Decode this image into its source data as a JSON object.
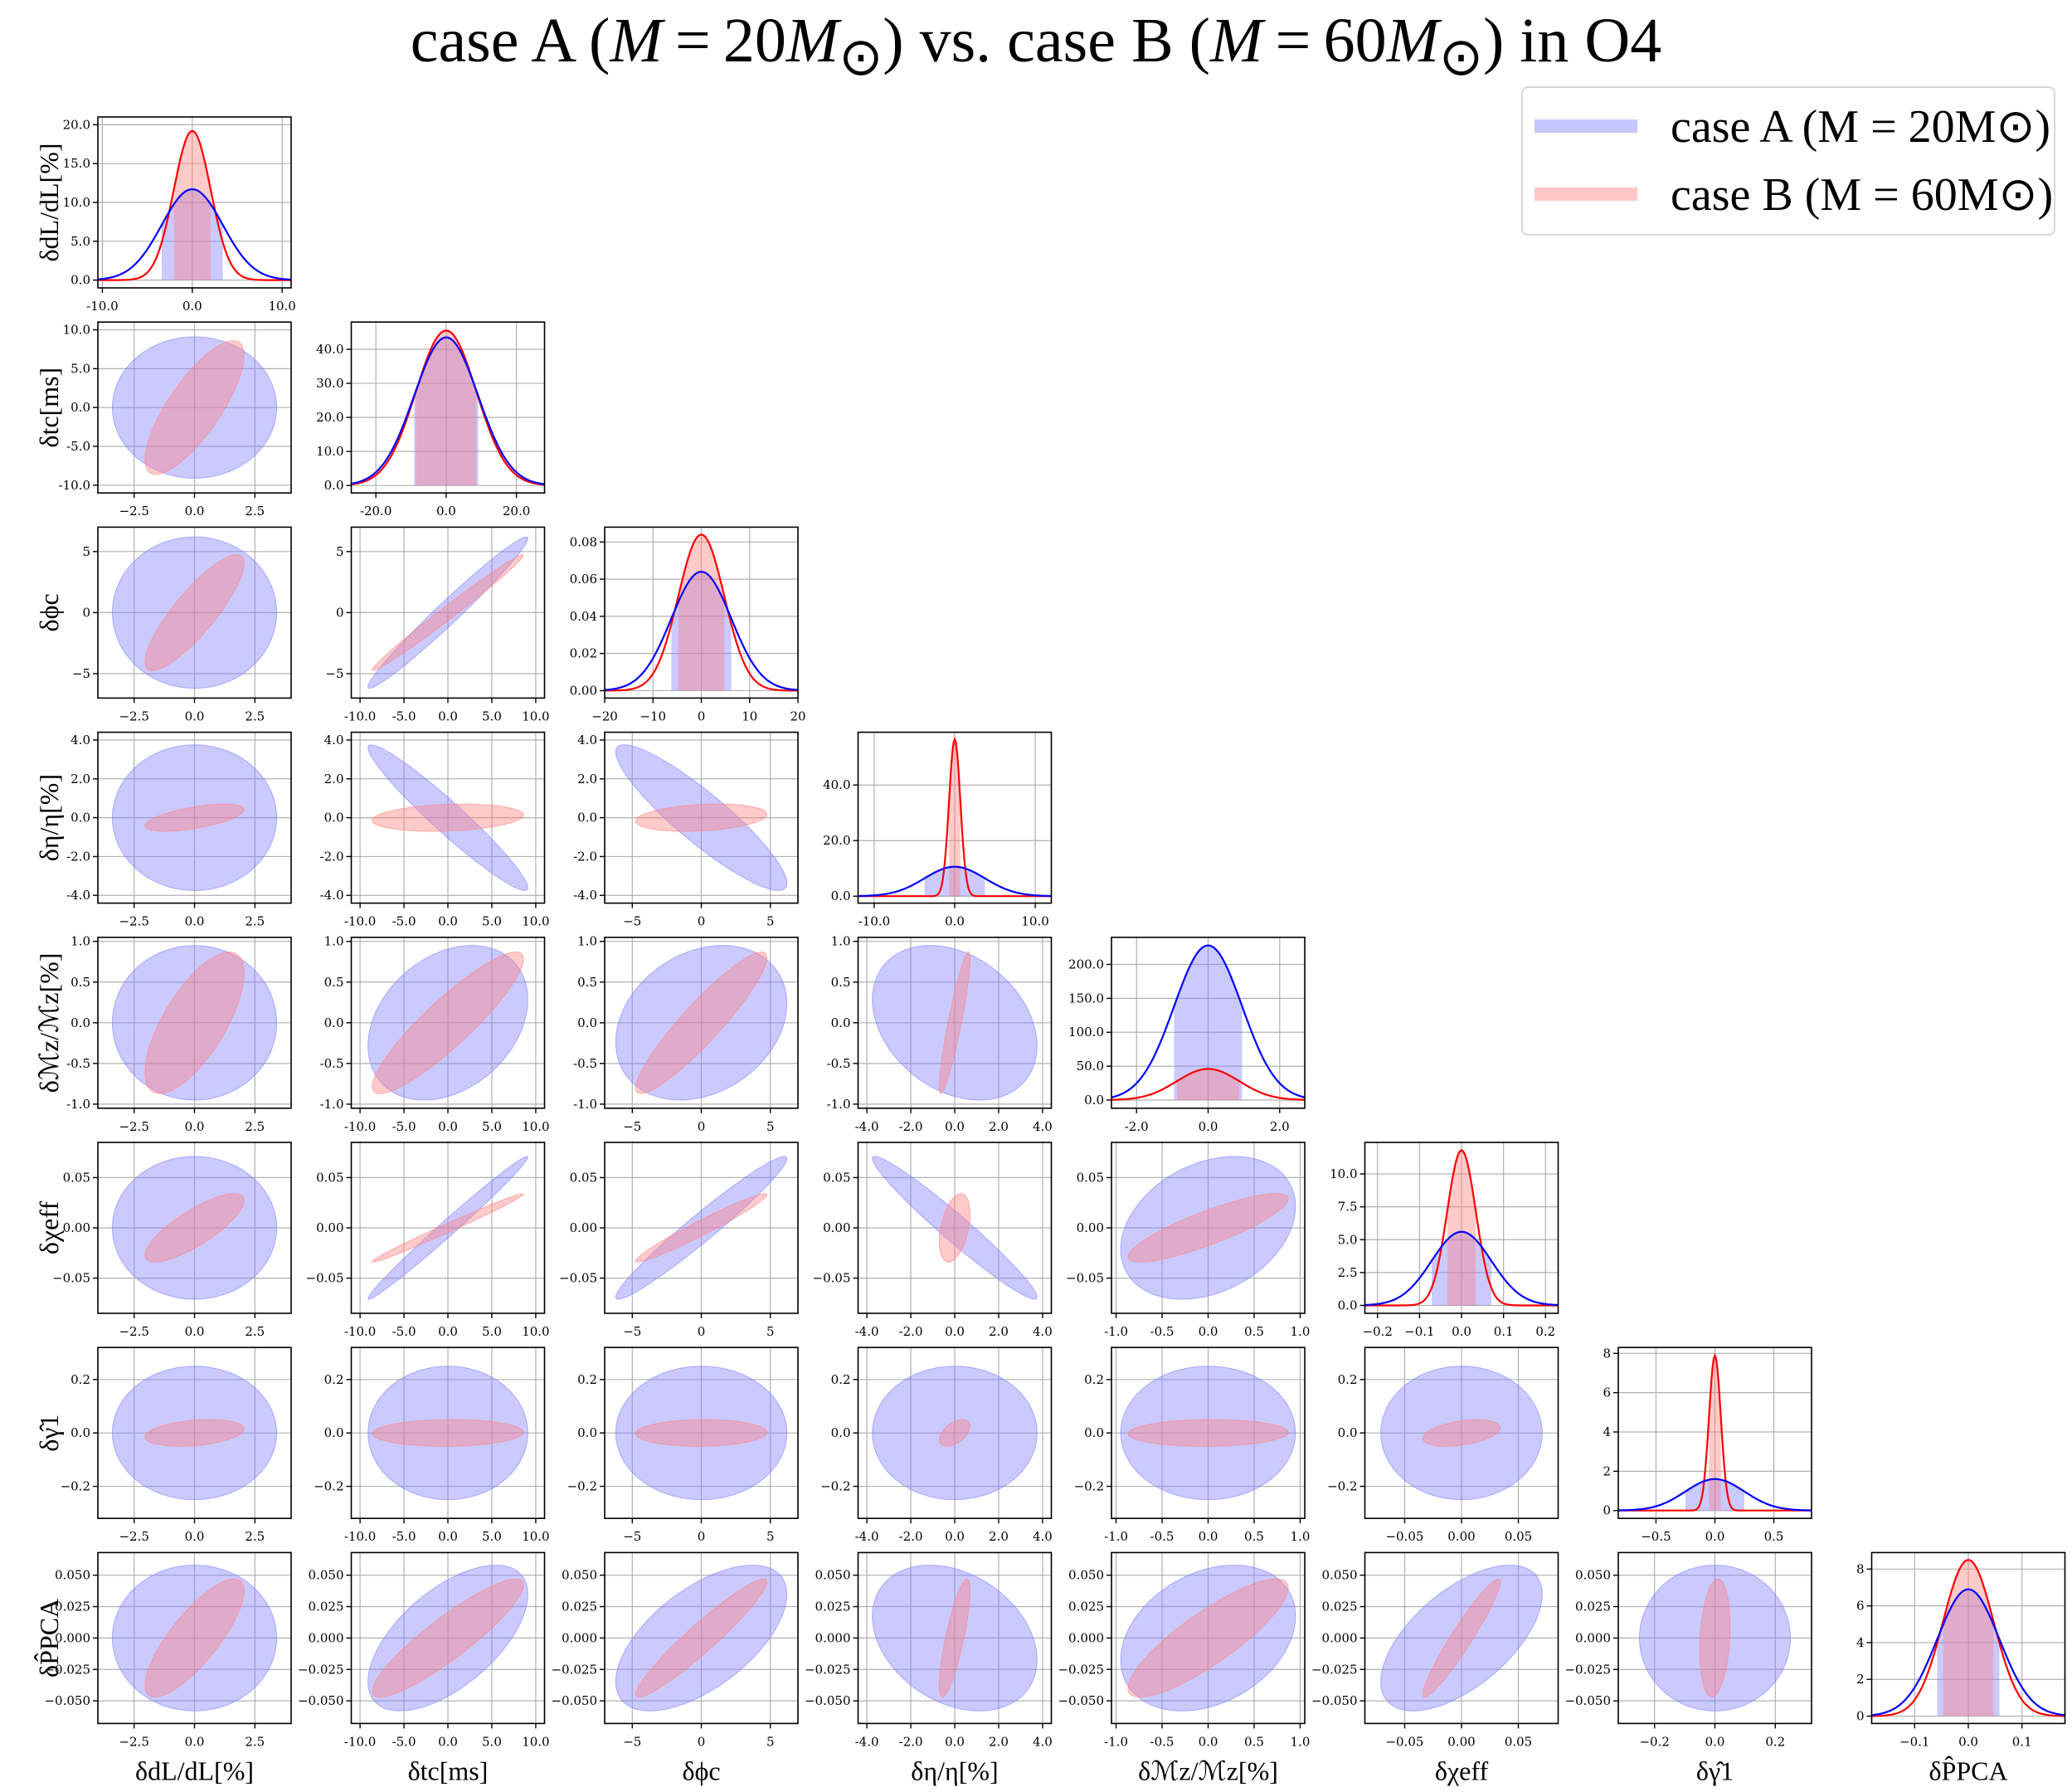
{
  "title": "case A (M = 20M⊙) vs. case B (M = 60M⊙) in O4",
  "colors": {
    "caseA_line": "#0000ff",
    "caseA_fill": "#8080ff",
    "caseB_line": "#ff0000",
    "caseB_fill": "#ff8080",
    "grid": "#b0b0b0",
    "axis": "#000000"
  },
  "legend": {
    "location": "top-right",
    "entries": [
      "case A (M = 20M⊙)",
      "case B (M = 60M⊙)"
    ]
  },
  "chart_data": {
    "type": "corner",
    "parameters": [
      {
        "id": "dL",
        "label": "δdL/dL[%]"
      },
      {
        "id": "tc",
        "label": "δtc[ms]"
      },
      {
        "id": "phi",
        "label": "δϕc"
      },
      {
        "id": "eta",
        "label": "δη/η[%]"
      },
      {
        "id": "Mc",
        "label": "δℳz/ℳz[%]"
      },
      {
        "id": "chi",
        "label": "δχeff"
      },
      {
        "id": "gam",
        "label": "δγ̂1"
      },
      {
        "id": "ppca",
        "label": "δP̂PCA"
      }
    ],
    "sigma_caseA": [
      3.4,
      9.1,
      6.2,
      3.75,
      0.95,
      0.071,
      0.25,
      0.058
    ],
    "sigma_caseB": [
      2.05,
      8.6,
      4.75,
      0.7,
      0.87,
      0.034,
      0.05,
      0.047
    ],
    "corr_caseA": [
      [
        1,
        0,
        0,
        0,
        0,
        0,
        0,
        0
      ],
      [
        0,
        1,
        0.98,
        -0.96,
        0.3,
        0.99,
        0,
        0.6
      ],
      [
        0,
        0.98,
        1,
        -0.9,
        0.25,
        0.97,
        0,
        0.6
      ],
      [
        0,
        -0.96,
        -0.9,
        1,
        -0.3,
        -0.97,
        0,
        -0.3
      ],
      [
        0,
        0.3,
        0.25,
        -0.3,
        1,
        0.3,
        0,
        0.3
      ],
      [
        0,
        0.99,
        0.97,
        -0.97,
        0.3,
        1,
        0,
        0.6
      ],
      [
        0,
        0,
        0,
        0,
        0,
        0,
        1,
        0
      ],
      [
        0,
        0.6,
        0.6,
        -0.3,
        0.3,
        0.6,
        0,
        1
      ]
    ],
    "corr_caseB": [
      [
        1,
        0.78,
        0.85,
        0.6,
        0.7,
        0.8,
        0.3,
        0.8
      ],
      [
        0.78,
        1,
        0.99,
        0.2,
        0.9,
        0.99,
        0.05,
        0.9
      ],
      [
        0.85,
        0.99,
        1,
        0.25,
        0.92,
        0.97,
        0.05,
        0.95
      ],
      [
        0.6,
        0.2,
        0.25,
        1,
        0.9,
        0.4,
        0.5,
        0.8
      ],
      [
        0.7,
        0.9,
        0.92,
        0.9,
        1,
        0.85,
        0.05,
        0.85
      ],
      [
        0.8,
        0.99,
        0.97,
        0.4,
        0.85,
        1,
        0.4,
        0.95
      ],
      [
        0.3,
        0.05,
        0.05,
        0.5,
        0.05,
        0.4,
        1,
        0.2
      ],
      [
        0.8,
        0.9,
        0.95,
        0.8,
        0.85,
        0.95,
        0.2,
        1
      ]
    ],
    "diag_peaks": {
      "caseA": [
        11.7,
        43.5,
        0.064,
        10.6,
        228,
        5.6,
        1.6,
        6.9
      ],
      "caseB": [
        19.2,
        45.5,
        0.084,
        56.5,
        46,
        11.8,
        7.9,
        8.5
      ]
    },
    "axis_ticks": {
      "x": [
        [
          [
            -10,
            "-10.0"
          ],
          [
            0,
            "0.0"
          ],
          [
            10,
            "10.0"
          ]
        ],
        [
          [
            -20,
            "-20.0"
          ],
          [
            0,
            "0.0"
          ],
          [
            20,
            "20.0"
          ]
        ],
        [
          [
            -20,
            "−20"
          ],
          [
            -10,
            "−10"
          ],
          [
            0,
            "0"
          ],
          [
            10,
            "10"
          ],
          [
            20,
            "20"
          ]
        ],
        [
          [
            -10,
            "-10.0"
          ],
          [
            0,
            "0.0"
          ],
          [
            10,
            "10.0"
          ]
        ],
        [
          [
            -2,
            "-2.0"
          ],
          [
            0,
            "0.0"
          ],
          [
            2,
            "2.0"
          ]
        ],
        [
          [
            -0.2,
            "−0.2"
          ],
          [
            -0.1,
            "−0.1"
          ],
          [
            0,
            "0.0"
          ],
          [
            0.1,
            "0.1"
          ],
          [
            0.2,
            "0.2"
          ]
        ],
        [
          [
            -0.5,
            "−0.5"
          ],
          [
            0,
            "0.0"
          ],
          [
            0.5,
            "0.5"
          ]
        ],
        [
          [
            -0.1,
            "−0.1"
          ],
          [
            0,
            "0.0"
          ],
          [
            0.1,
            "0.1"
          ]
        ]
      ],
      "y": [
        [
          [
            0,
            "0.0"
          ],
          [
            5,
            "5.0"
          ],
          [
            10,
            "10.0"
          ],
          [
            15,
            "15.0"
          ],
          [
            20,
            "20.0"
          ]
        ],
        [
          [
            0,
            "0.0"
          ],
          [
            10,
            "10.0"
          ],
          [
            20,
            "20.0"
          ],
          [
            30,
            "30.0"
          ],
          [
            40,
            "40.0"
          ]
        ],
        [
          [
            0,
            "0.00"
          ],
          [
            0.02,
            "0.02"
          ],
          [
            0.04,
            "0.04"
          ],
          [
            0.06,
            "0.06"
          ],
          [
            0.08,
            "0.08"
          ]
        ],
        [
          [
            0,
            "0.0"
          ],
          [
            20,
            "20.0"
          ],
          [
            40,
            "40.0"
          ]
        ],
        [
          [
            0,
            "0.0"
          ],
          [
            50,
            "50.0"
          ],
          [
            100,
            "100.0"
          ],
          [
            150,
            "150.0"
          ],
          [
            200,
            "200.0"
          ]
        ],
        [
          [
            0,
            "0.0"
          ],
          [
            2.5,
            "2.5"
          ],
          [
            5,
            "5.0"
          ],
          [
            7.5,
            "7.5"
          ],
          [
            10,
            "10.0"
          ]
        ],
        [
          [
            0,
            "0"
          ],
          [
            2,
            "2"
          ],
          [
            4,
            "4"
          ],
          [
            6,
            "6"
          ],
          [
            8,
            "8"
          ]
        ],
        [
          [
            0,
            "0"
          ],
          [
            2,
            "2"
          ],
          [
            4,
            "4"
          ],
          [
            6,
            "6"
          ],
          [
            8,
            "8"
          ]
        ]
      ]
    },
    "scatter_ticks": [
      [
        [
          -2.5,
          "−2.5"
        ],
        [
          0,
          "0.0"
        ],
        [
          2.5,
          "2.5"
        ]
      ],
      [
        [
          -10,
          "-10.0"
        ],
        [
          -5,
          "-5.0"
        ],
        [
          0,
          "0.0"
        ],
        [
          5,
          "5.0"
        ],
        [
          10,
          "10.0"
        ]
      ],
      [
        [
          -5,
          "−5"
        ],
        [
          0,
          "0"
        ],
        [
          5,
          "5"
        ]
      ],
      [
        [
          -4,
          "-4.0"
        ],
        [
          -2,
          "-2.0"
        ],
        [
          0,
          "0.0"
        ],
        [
          2,
          "2.0"
        ],
        [
          4,
          "4.0"
        ]
      ],
      [
        [
          -1,
          "-1.0"
        ],
        [
          -0.5,
          "-0.5"
        ],
        [
          0,
          "0.0"
        ],
        [
          0.5,
          "0.5"
        ],
        [
          1,
          "1.0"
        ]
      ],
      [
        [
          -0.05,
          "−0.05"
        ],
        [
          0,
          "0.00"
        ],
        [
          0.05,
          "0.05"
        ]
      ],
      [
        [
          -0.2,
          "−0.2"
        ],
        [
          0,
          "0.0"
        ],
        [
          0.2,
          "0.2"
        ]
      ],
      [
        [
          -0.05,
          "−0.050"
        ],
        [
          -0.025,
          "−0.025"
        ],
        [
          0,
          "0.000"
        ],
        [
          0.025,
          "0.025"
        ],
        [
          0.05,
          "0.050"
        ]
      ]
    ],
    "scatter_ranges": [
      [
        -4,
        4
      ],
      [
        -11,
        11
      ],
      [
        -7,
        7
      ],
      [
        -4.4,
        4.4
      ],
      [
        -1.05,
        1.05
      ],
      [
        -0.085,
        0.085
      ],
      [
        -0.32,
        0.32
      ],
      [
        -0.068,
        0.068
      ]
    ],
    "diag_ranges": {
      "x": [
        [
          -10.5,
          11
        ],
        [
          -27,
          28
        ],
        [
          -20,
          20
        ],
        [
          -12,
          12
        ],
        [
          -2.7,
          2.7
        ],
        [
          -0.23,
          0.23
        ],
        [
          -0.82,
          0.82
        ],
        [
          -0.18,
          0.18
        ]
      ],
      "y": [
        [
          -1,
          21
        ],
        [
          -2.2,
          48
        ],
        [
          -0.004,
          0.088
        ],
        [
          -2.5,
          59
        ],
        [
          -12,
          240
        ],
        [
          -0.6,
          12.4
        ],
        [
          -0.4,
          8.3
        ],
        [
          -0.4,
          8.9
        ]
      ]
    }
  }
}
